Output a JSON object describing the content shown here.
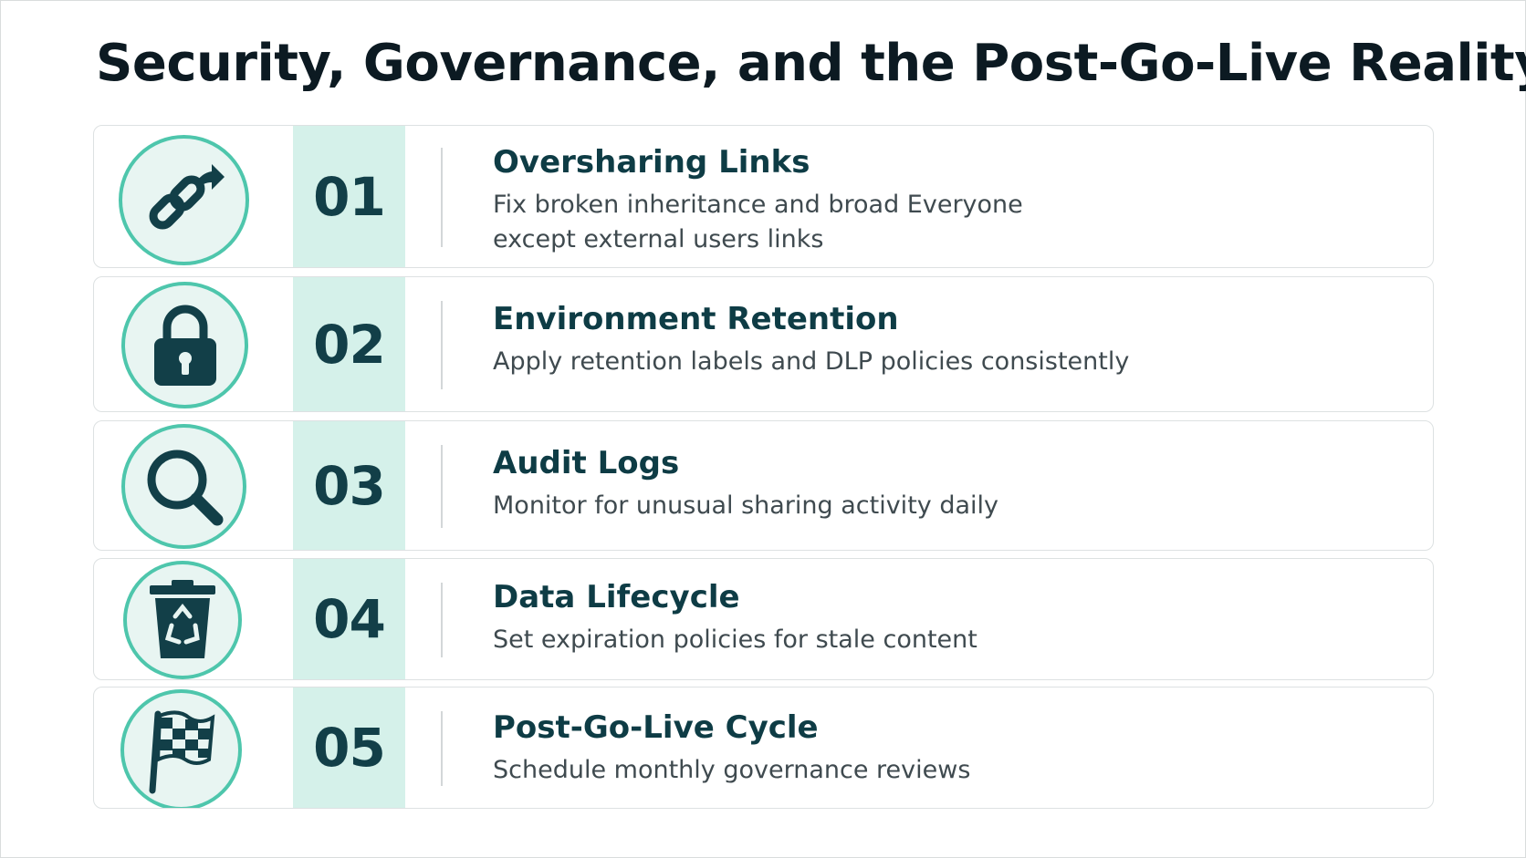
{
  "slide": {
    "title": "Security, Governance, and the Post-Go-Live Reality"
  },
  "colors": {
    "accent_teal": "#4ec6ac",
    "number_band": "#d5f1ea",
    "icon_fill": "#123f48",
    "heading_text": "#0e3c45"
  },
  "items": [
    {
      "number": "01",
      "icon": "share-link-icon",
      "title": "Oversharing Links",
      "description": "Fix broken inheritance and broad Everyone except external users links"
    },
    {
      "number": "02",
      "icon": "padlock-icon",
      "title": "Environment Retention",
      "description": "Apply retention labels and DLP policies consistently"
    },
    {
      "number": "03",
      "icon": "magnifier-icon",
      "title": "Audit Logs",
      "description": "Monitor for unusual sharing activity daily"
    },
    {
      "number": "04",
      "icon": "recycle-bin-icon",
      "title": "Data Lifecycle",
      "description": "Set expiration policies for stale content"
    },
    {
      "number": "05",
      "icon": "checkered-flag-icon",
      "title": "Post-Go-Live Cycle",
      "description": "Schedule monthly governance reviews"
    }
  ]
}
